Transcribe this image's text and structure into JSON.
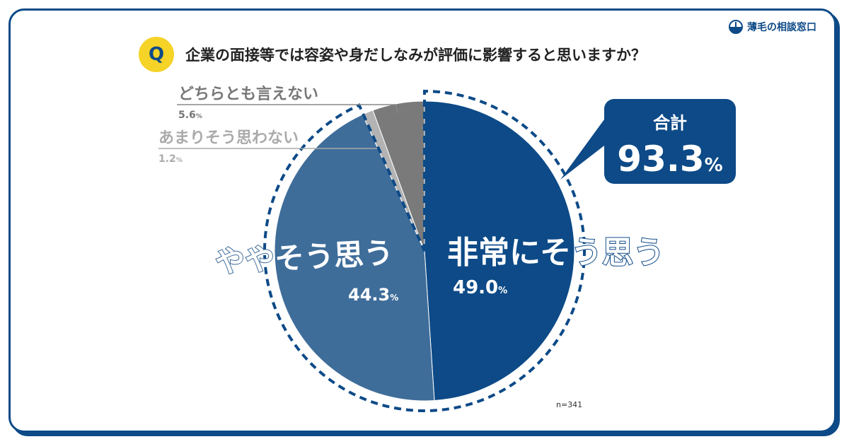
{
  "logo": {
    "text": "薄毛の相談窓口"
  },
  "question": {
    "badge": "Q",
    "text": "企業の面接等では容姿や身だしなみが評価に影響すると思いますか？"
  },
  "callout": {
    "label": "合計",
    "value": "93.3",
    "unit": "%"
  },
  "sample": "n=341",
  "chart_data": {
    "type": "pie",
    "title": "企業の面接等では容姿や身だしなみが評価に影響すると思いますか？",
    "slices": [
      {
        "label": "非常にそう思う",
        "value": 49.0,
        "display": "49.0",
        "color": "#0d4a87"
      },
      {
        "label": "ややそう思う",
        "value": 44.3,
        "display": "44.3",
        "color": "#3f6d9a"
      },
      {
        "label": "あまりそう思わない",
        "value": 1.2,
        "display": "1.2",
        "color": "#b3b3b3"
      },
      {
        "label": "どちらとも言えない",
        "value": 5.6,
        "display": "5.6",
        "color": "#7a7a7a"
      }
    ],
    "unit": "%",
    "total_agree": 93.3
  }
}
